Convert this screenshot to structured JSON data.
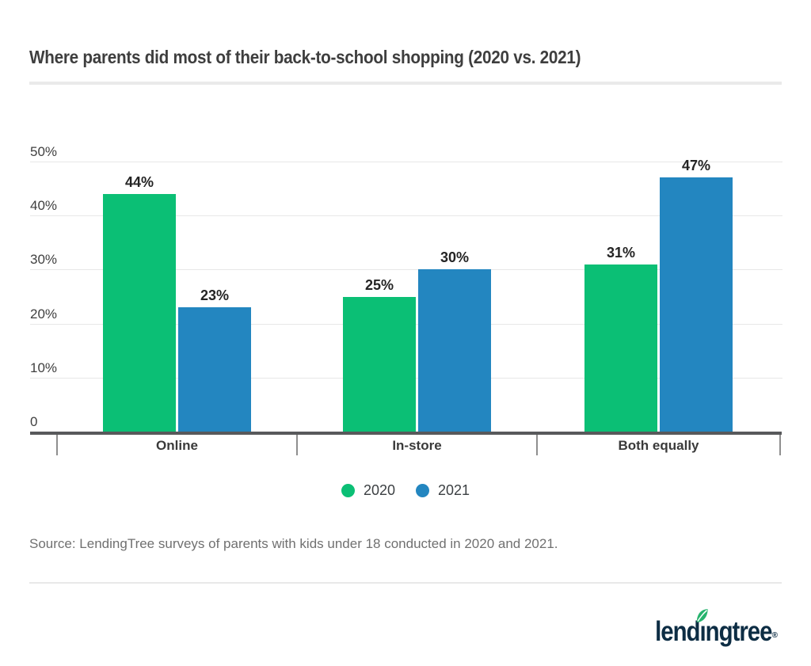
{
  "title": "Where parents did most of their back-to-school shopping (2020 vs. 2021)",
  "source_note": "Source: LendingTree surveys of parents with kids under 18 conducted in 2020 and 2021.",
  "logo": {
    "brand": "lendingtree",
    "registered": "®"
  },
  "colors": {
    "green_2020": "#0bbf75",
    "blue_2021": "#2386c0",
    "axis": "#58595b",
    "gridline": "#e7e7e7",
    "logo_navy": "#0d2d44",
    "leaf_green": "#27b36e"
  },
  "chart_data": {
    "type": "bar",
    "title": "Where parents did most of their back-to-school shopping (2020 vs. 2021)",
    "categories": [
      "Online",
      "In-store",
      "Both equally"
    ],
    "series": [
      {
        "name": "2020",
        "color": "#0bbf75",
        "values": [
          44,
          25,
          31
        ]
      },
      {
        "name": "2021",
        "color": "#2386c0",
        "values": [
          23,
          30,
          47
        ]
      }
    ],
    "value_suffix": "%",
    "value_labels": [
      [
        "44%",
        "25%",
        "31%"
      ],
      [
        "23%",
        "30%",
        "47%"
      ]
    ],
    "y_axis": {
      "range": [
        0,
        50
      ],
      "ticks": [
        {
          "value": 50,
          "label": "50%"
        },
        {
          "value": 40,
          "label": "40%"
        },
        {
          "value": 30,
          "label": "30%"
        },
        {
          "value": 20,
          "label": "20%"
        },
        {
          "value": 10,
          "label": "10%"
        },
        {
          "value": 0,
          "label": "0"
        }
      ]
    },
    "grid": true,
    "legend_position": "bottom"
  }
}
